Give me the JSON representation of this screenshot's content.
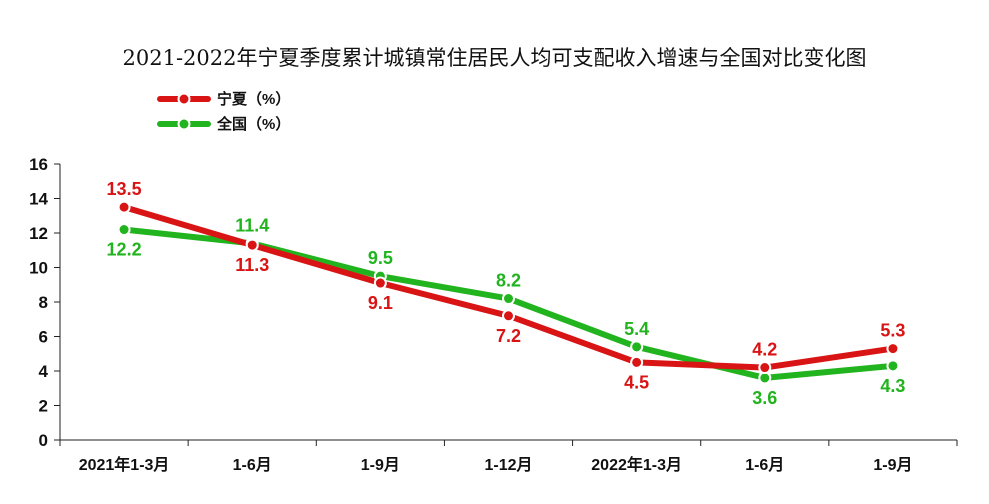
{
  "chart_data": {
    "type": "line",
    "title": "2021-2022年宁夏季度累计城镇常住居民人均可支配收入增速与全国对比变化图",
    "xlabel": "",
    "ylabel": "",
    "categories": [
      "2021年1-3月",
      "1-6月",
      "1-9月",
      "1-12月",
      "2022年1-3月",
      "1-6月",
      "1-9月"
    ],
    "ylim": [
      0,
      16
    ],
    "yticks": [
      0,
      2,
      4,
      6,
      8,
      10,
      12,
      14,
      16
    ],
    "grid": false,
    "legend": "top-left",
    "series": [
      {
        "name": "宁夏（%）",
        "color": "#d91414",
        "values": [
          13.5,
          11.3,
          9.1,
          7.2,
          4.5,
          4.2,
          5.3
        ],
        "labels": [
          "13.5",
          "11.3",
          "9.1",
          "7.2",
          "4.5",
          "4.2",
          "5.3"
        ]
      },
      {
        "name": "全国（%）",
        "color": "#22b41e",
        "values": [
          12.2,
          11.4,
          9.5,
          8.2,
          5.4,
          3.6,
          4.3
        ],
        "labels": [
          "12.2",
          "11.4",
          "9.5",
          "8.2",
          "5.4",
          "3.6",
          "4.3"
        ]
      }
    ]
  }
}
